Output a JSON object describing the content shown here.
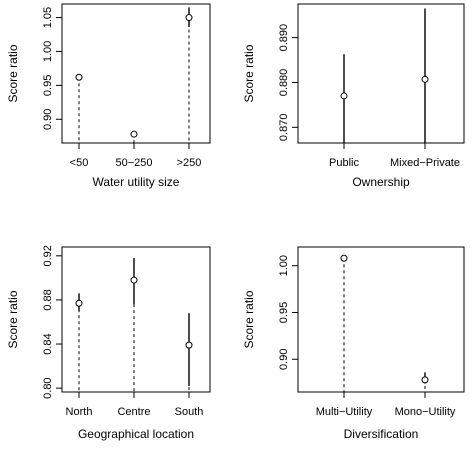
{
  "chart_data": [
    {
      "type": "scatter",
      "xlabel": "Water utility size",
      "ylabel": "Score ratio",
      "categories": [
        "<50",
        "50−250",
        ">250"
      ],
      "ylim": [
        0.865,
        1.07
      ],
      "yticks": [
        0.9,
        0.95,
        1.0,
        1.05
      ],
      "ytick_labels": [
        "0.90",
        "0.95",
        "1.00",
        "1.05"
      ],
      "points": [
        {
          "estimate": 0.962,
          "lower": 0.959,
          "upper": 0.965
        },
        {
          "estimate": 0.878,
          "lower": 0.875,
          "upper": 0.882
        },
        {
          "estimate": 1.05,
          "lower": 1.036,
          "upper": 1.065
        }
      ],
      "grid": false
    },
    {
      "type": "scatter",
      "xlabel": "Ownership",
      "ylabel": "Score ratio",
      "categories": [
        "Public",
        "Mixed−Private"
      ],
      "ylim": [
        0.8665,
        0.8975
      ],
      "yticks": [
        0.87,
        0.88,
        0.89
      ],
      "ytick_labels": [
        "0.870",
        "0.880",
        "0.890"
      ],
      "points": [
        {
          "estimate": 0.877,
          "lower": 0.8665,
          "upper": 0.8863
        },
        {
          "estimate": 0.8807,
          "lower": 0.8665,
          "upper": 0.8965
        }
      ],
      "grid": false
    },
    {
      "type": "scatter",
      "xlabel": "Geographical location",
      "ylabel": "Score ratio",
      "categories": [
        "North",
        "Centre",
        "South"
      ],
      "ylim": [
        0.7965,
        0.928
      ],
      "yticks": [
        0.8,
        0.84,
        0.88,
        0.92
      ],
      "ytick_labels": [
        "0.80",
        "0.84",
        "0.88",
        "0.92"
      ],
      "points": [
        {
          "estimate": 0.877,
          "lower": 0.87,
          "upper": 0.886
        },
        {
          "estimate": 0.898,
          "lower": 0.876,
          "upper": 0.918
        },
        {
          "estimate": 0.839,
          "lower": 0.802,
          "upper": 0.868
        }
      ],
      "grid": false
    },
    {
      "type": "scatter",
      "xlabel": "Diversification",
      "ylabel": "Score ratio",
      "categories": [
        "Multi−Utility",
        "Mono−Utility"
      ],
      "ylim": [
        0.865,
        1.02
      ],
      "yticks": [
        0.9,
        0.95,
        1.0
      ],
      "ytick_labels": [
        "0.90",
        "0.95",
        "1.00"
      ],
      "points": [
        {
          "estimate": 1.008,
          "lower": 1.006,
          "upper": 1.01
        },
        {
          "estimate": 0.878,
          "lower": 0.874,
          "upper": 0.886
        }
      ],
      "grid": false
    }
  ]
}
